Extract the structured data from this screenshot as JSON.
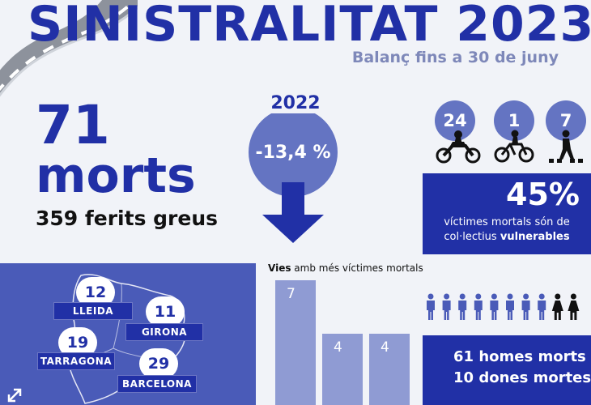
{
  "header": {
    "title": "SINISTRALITAT 2023",
    "subtitle": "Balanç fins a 30 de juny"
  },
  "totals": {
    "deaths_number": "71",
    "deaths_word": "morts",
    "injured": "359 ferits greus"
  },
  "comparison": {
    "year": "2022",
    "change": "-13,4 %"
  },
  "vulnerable": {
    "groups": [
      {
        "value": "24",
        "icon": "motorcycle-icon"
      },
      {
        "value": "1",
        "icon": "bicycle-icon"
      },
      {
        "value": "7",
        "icon": "pedestrian-icon"
      }
    ],
    "percent": "45%",
    "text_line1": "víctimes mortals són de",
    "text_line2_plain": "col·lectius ",
    "text_line2_bold": "vulnerables"
  },
  "regions": [
    {
      "name": "LLEIDA",
      "value": "12"
    },
    {
      "name": "GIRONA",
      "value": "11"
    },
    {
      "name": "TARRAGONA",
      "value": "19"
    },
    {
      "name": "BARCELONA",
      "value": "29"
    }
  ],
  "roads": {
    "title_bold": "Vies",
    "title_rest": " amb més víctimes mortals",
    "chart_data": {
      "type": "bar",
      "values": [
        7,
        4,
        4
      ],
      "ylim": [
        0,
        7
      ]
    }
  },
  "gender": {
    "men": "61 homes morts",
    "women": "10 dones mortes",
    "men_icons": 8,
    "women_icons": 2
  },
  "colors": {
    "brand_blue": "#2130a6",
    "mid_blue": "#4a5bb8",
    "light_blue": "#6474c2",
    "bar_color": "#8f9bd3"
  }
}
